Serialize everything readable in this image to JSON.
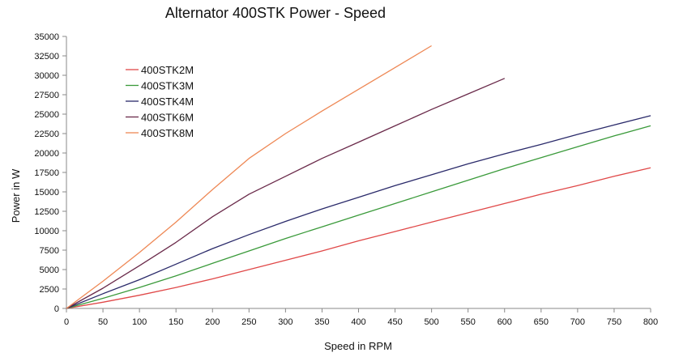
{
  "chart_data": {
    "type": "line",
    "title": "Alternator 400STK Power - Speed",
    "xlabel": "Speed in RPM",
    "ylabel": "Power in W",
    "xlim": [
      0,
      800
    ],
    "ylim": [
      0,
      35000
    ],
    "xticks": [
      0,
      50,
      100,
      150,
      200,
      250,
      300,
      350,
      400,
      450,
      500,
      550,
      600,
      650,
      700,
      750,
      800
    ],
    "yticks": [
      0,
      2500,
      5000,
      7500,
      10000,
      12500,
      15000,
      17500,
      20000,
      22500,
      25000,
      27500,
      30000,
      32500,
      35000
    ],
    "grid": false,
    "legend_position": "upper-left",
    "series": [
      {
        "name": "400STK2M",
        "color": "#e04848",
        "points": [
          [
            0,
            0
          ],
          [
            50,
            800
          ],
          [
            100,
            1700
          ],
          [
            150,
            2700
          ],
          [
            200,
            3800
          ],
          [
            250,
            5000
          ],
          [
            300,
            6200
          ],
          [
            350,
            7400
          ],
          [
            400,
            8700
          ],
          [
            450,
            9900
          ],
          [
            500,
            11100
          ],
          [
            550,
            12300
          ],
          [
            600,
            13500
          ],
          [
            650,
            14700
          ],
          [
            700,
            15800
          ],
          [
            750,
            17000
          ],
          [
            800,
            18100
          ]
        ]
      },
      {
        "name": "400STK3M",
        "color": "#3a9a3a",
        "points": [
          [
            0,
            0
          ],
          [
            50,
            1300
          ],
          [
            100,
            2700
          ],
          [
            150,
            4200
          ],
          [
            200,
            5800
          ],
          [
            250,
            7400
          ],
          [
            300,
            9000
          ],
          [
            350,
            10500
          ],
          [
            400,
            12000
          ],
          [
            450,
            13500
          ],
          [
            500,
            15000
          ],
          [
            550,
            16500
          ],
          [
            600,
            18000
          ],
          [
            650,
            19400
          ],
          [
            700,
            20800
          ],
          [
            750,
            22200
          ],
          [
            800,
            23500
          ]
        ]
      },
      {
        "name": "400STK4M",
        "color": "#2a2a6a",
        "points": [
          [
            0,
            0
          ],
          [
            50,
            1900
          ],
          [
            100,
            3700
          ],
          [
            150,
            5700
          ],
          [
            200,
            7700
          ],
          [
            250,
            9500
          ],
          [
            300,
            11200
          ],
          [
            350,
            12800
          ],
          [
            400,
            14300
          ],
          [
            450,
            15800
          ],
          [
            500,
            17200
          ],
          [
            550,
            18600
          ],
          [
            600,
            19900
          ],
          [
            650,
            21100
          ],
          [
            700,
            22400
          ],
          [
            750,
            23600
          ],
          [
            800,
            24800
          ]
        ]
      },
      {
        "name": "400STK6M",
        "color": "#6a2a4a",
        "points": [
          [
            0,
            0
          ],
          [
            50,
            2600
          ],
          [
            100,
            5500
          ],
          [
            150,
            8500
          ],
          [
            200,
            11800
          ],
          [
            250,
            14700
          ],
          [
            300,
            17000
          ],
          [
            350,
            19300
          ],
          [
            400,
            21400
          ],
          [
            450,
            23500
          ],
          [
            500,
            25600
          ],
          [
            550,
            27600
          ],
          [
            600,
            29600
          ]
        ]
      },
      {
        "name": "400STK8M",
        "color": "#ee8855",
        "points": [
          [
            0,
            0
          ],
          [
            50,
            3500
          ],
          [
            100,
            7200
          ],
          [
            150,
            11100
          ],
          [
            200,
            15300
          ],
          [
            250,
            19300
          ],
          [
            300,
            22500
          ],
          [
            350,
            25400
          ],
          [
            400,
            28200
          ],
          [
            450,
            31000
          ],
          [
            500,
            33800
          ]
        ]
      }
    ]
  }
}
